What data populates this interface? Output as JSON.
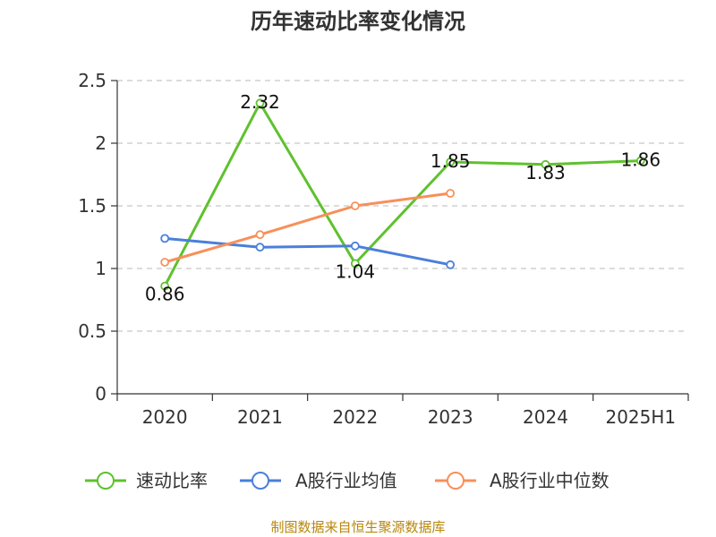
{
  "chart_data": {
    "type": "line",
    "title": "历年速动比率变化情况",
    "categories": [
      "2020",
      "2021",
      "2022",
      "2023",
      "2024",
      "2025H1"
    ],
    "ylim": [
      0,
      2.5
    ],
    "yticks": [
      "0",
      "0.5",
      "1",
      "1.5",
      "2",
      "2.5"
    ],
    "grid": true,
    "legend_position": "bottom",
    "series": [
      {
        "name": "速动比率",
        "color": "#5fc12e",
        "values": [
          0.86,
          2.32,
          1.04,
          1.85,
          1.83,
          1.86
        ],
        "labels": [
          "0.86",
          "2.32",
          "1.04",
          "1.85",
          "1.83",
          "1.86"
        ],
        "show_labels": true
      },
      {
        "name": "A股行业均值",
        "color": "#4a7fdb",
        "values": [
          1.24,
          1.17,
          1.18,
          1.03,
          null,
          null
        ],
        "show_labels": false
      },
      {
        "name": "A股行业中位数",
        "color": "#f7905a",
        "values": [
          1.05,
          1.27,
          1.5,
          1.6,
          null,
          null
        ],
        "show_labels": false
      }
    ],
    "source": "制图数据来自恒生聚源数据库"
  }
}
